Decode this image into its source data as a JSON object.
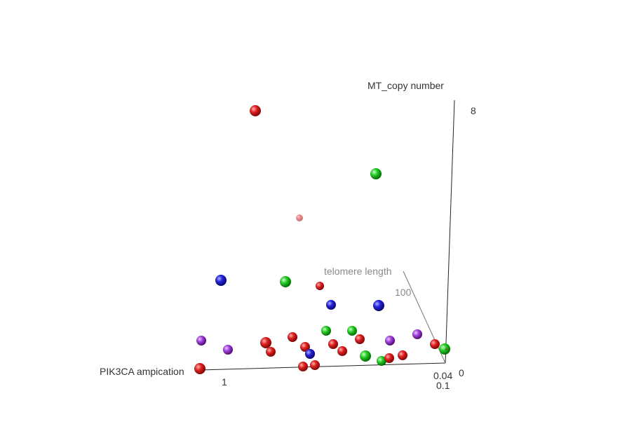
{
  "chart_data": {
    "type": "scatter",
    "dimensions": 3,
    "axes": {
      "x": {
        "label": "PIK3CA ampication",
        "ticks": [
          "1",
          "0.1"
        ]
      },
      "y": {
        "label": "telomere length",
        "ticks": [
          "100",
          "0.04"
        ]
      },
      "z": {
        "label": "MT_copy number",
        "ticks": [
          "8",
          "0"
        ]
      }
    },
    "grid": false,
    "legend": "none",
    "colors": {
      "red": "#e02020",
      "green": "#22cc22",
      "blue": "#2222dd",
      "purple": "#a040e0"
    },
    "points": [
      {
        "color": "red"
      },
      {
        "color": "green"
      },
      {
        "color": "red"
      },
      {
        "color": "blue"
      },
      {
        "color": "green"
      },
      {
        "color": "red"
      },
      {
        "color": "blue"
      },
      {
        "color": "blue"
      },
      {
        "color": "green"
      },
      {
        "color": "green"
      },
      {
        "color": "purple"
      },
      {
        "color": "red"
      },
      {
        "color": "red"
      },
      {
        "color": "purple"
      },
      {
        "color": "purple"
      },
      {
        "color": "red"
      },
      {
        "color": "red"
      },
      {
        "color": "red"
      },
      {
        "color": "red"
      },
      {
        "color": "red"
      },
      {
        "color": "purple"
      },
      {
        "color": "red"
      },
      {
        "color": "red"
      },
      {
        "color": "green"
      },
      {
        "color": "blue"
      },
      {
        "color": "red"
      },
      {
        "color": "red"
      },
      {
        "color": "green"
      },
      {
        "color": "red"
      },
      {
        "color": "green"
      },
      {
        "color": "red"
      },
      {
        "color": "red"
      },
      {
        "color": "red"
      }
    ]
  }
}
